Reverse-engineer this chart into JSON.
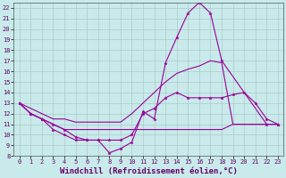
{
  "xlabel": "Windchill (Refroidissement éolien,°C)",
  "xlim": [
    -0.5,
    23.5
  ],
  "ylim": [
    8,
    22.5
  ],
  "xticks": [
    0,
    1,
    2,
    3,
    4,
    5,
    6,
    7,
    8,
    9,
    10,
    11,
    12,
    13,
    14,
    15,
    16,
    17,
    18,
    19,
    20,
    21,
    22,
    23
  ],
  "yticks": [
    8,
    9,
    10,
    11,
    12,
    13,
    14,
    15,
    16,
    17,
    18,
    19,
    20,
    21,
    22
  ],
  "bg_color": "#c8eaea",
  "grid_color": "#b0c8c8",
  "line_color": "#990099",
  "line1_x": [
    0,
    1,
    2,
    3,
    4,
    5,
    6,
    7,
    8,
    9,
    10,
    11,
    12,
    13,
    14,
    15,
    16,
    17,
    18,
    22,
    23
  ],
  "line1_y": [
    13,
    12,
    11.5,
    11.0,
    10.5,
    9.8,
    9.5,
    9.5,
    8.3,
    8.7,
    9.3,
    12.2,
    11.5,
    16.8,
    19.2,
    21.5,
    22.5,
    21.5,
    17.0,
    11.0,
    11.0
  ],
  "line2_x": [
    0,
    1,
    2,
    3,
    4,
    5,
    6,
    7,
    8,
    9,
    10,
    11,
    12,
    13,
    14,
    15,
    16,
    17,
    18,
    19,
    20,
    21,
    22,
    23
  ],
  "line2_y": [
    13,
    12.5,
    12.0,
    11.5,
    11.5,
    11.2,
    11.2,
    11.2,
    11.2,
    11.2,
    12.0,
    13.0,
    14.0,
    15.0,
    15.8,
    16.2,
    16.5,
    17.0,
    16.8,
    11.0,
    11.0,
    11.0,
    11.0,
    11.0
  ],
  "line3_x": [
    0,
    1,
    2,
    3,
    4,
    5,
    6,
    7,
    8,
    9,
    10,
    11,
    12,
    13,
    14,
    15,
    16,
    17,
    18,
    19,
    20,
    21,
    22,
    23
  ],
  "line3_y": [
    13,
    12,
    11.5,
    10.5,
    10.0,
    9.5,
    9.5,
    9.5,
    9.5,
    9.5,
    10.0,
    12.0,
    12.5,
    13.5,
    14.0,
    13.5,
    13.5,
    13.5,
    13.5,
    13.8,
    14.0,
    13.0,
    11.5,
    11.0
  ],
  "line4_x": [
    0,
    1,
    2,
    3,
    4,
    5,
    6,
    7,
    8,
    9,
    10,
    11,
    12,
    13,
    14,
    15,
    16,
    17,
    18,
    19,
    20,
    21,
    22,
    23
  ],
  "line4_y": [
    13,
    12,
    11.5,
    11.0,
    10.5,
    10.5,
    10.5,
    10.5,
    10.5,
    10.5,
    10.5,
    10.5,
    10.5,
    10.5,
    10.5,
    10.5,
    10.5,
    10.5,
    10.5,
    11.0,
    11.0,
    11.0,
    11.0,
    11.0
  ],
  "tick_fontsize": 5,
  "xlabel_fontsize": 6.5
}
